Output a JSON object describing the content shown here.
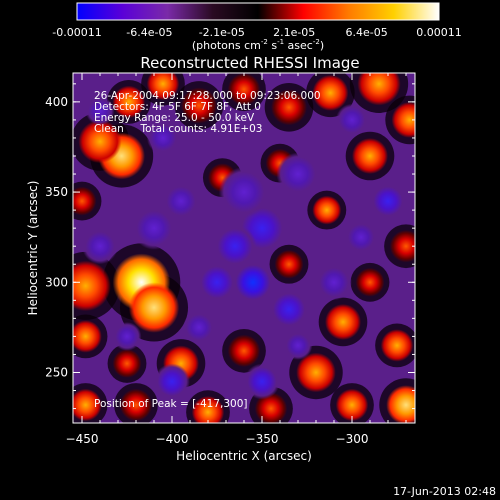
{
  "colorbar": {
    "tick_labels": [
      "-0.00011",
      "-6.4e-05",
      "-2.1e-05",
      "2.1e-05",
      "6.4e-05",
      "0.00011"
    ],
    "unit_prefix": "(photons cm",
    "unit_exp1": "-2",
    "unit_mid": " s",
    "unit_exp2": "-1",
    "unit_mid2": " asec",
    "unit_exp3": "-2",
    "unit_suffix": ")",
    "colors": [
      "#0000ff",
      "#5a00d8",
      "#7a2aa8",
      "#2a0a22",
      "#000000",
      "#ff0000",
      "#ff7a00",
      "#ffd000",
      "#ffffff"
    ]
  },
  "chart_data": {
    "type": "heatmap",
    "title": "Reconstructed RHESSI Image",
    "xlabel": "Heliocentric X (arcsec)",
    "ylabel": "Heliocentric Y (arcsec)",
    "xlim": [
      -455,
      -265
    ],
    "ylim": [
      222,
      416
    ],
    "x_ticks": [
      -450,
      -400,
      -350,
      -300
    ],
    "y_ticks": [
      250,
      300,
      350,
      400
    ],
    "x_tick_labels": [
      "−450",
      "−400",
      "−350",
      "−300"
    ],
    "y_tick_labels": [
      "250",
      "300",
      "350",
      "400"
    ],
    "annotations": [
      "26-Apr-2004 09:17:28.000 to 09:23:06.000",
      "Detectors: 4F 5F 6F 7F 8F, Att 0",
      "Energy Range: 25.0 - 50.0 keV",
      "Clean     Total counts: 4.91E+03"
    ],
    "peak_label": "Position of Peak = [-417,300]",
    "peak": [
      -417,
      300
    ],
    "blobs": [
      {
        "x": -417,
        "y": 300,
        "v": 1.0,
        "r": 16
      },
      {
        "x": -410,
        "y": 286,
        "v": 0.85,
        "r": 14
      },
      {
        "x": -448,
        "y": 298,
        "v": 0.55,
        "r": 14
      },
      {
        "x": -428,
        "y": 370,
        "v": 0.75,
        "r": 13
      },
      {
        "x": -440,
        "y": 378,
        "v": 0.6,
        "r": 12
      },
      {
        "x": -424,
        "y": 400,
        "v": 0.55,
        "r": 9
      },
      {
        "x": -405,
        "y": 410,
        "v": 0.5,
        "r": 9
      },
      {
        "x": -385,
        "y": 398,
        "v": 0.45,
        "r": 10
      },
      {
        "x": -360,
        "y": 407,
        "v": 0.4,
        "r": 9
      },
      {
        "x": -335,
        "y": 397,
        "v": 0.45,
        "r": 10
      },
      {
        "x": -312,
        "y": 405,
        "v": 0.55,
        "r": 10
      },
      {
        "x": -285,
        "y": 410,
        "v": 0.6,
        "r": 12
      },
      {
        "x": -268,
        "y": 390,
        "v": 0.5,
        "r": 10
      },
      {
        "x": -290,
        "y": 370,
        "v": 0.55,
        "r": 10
      },
      {
        "x": -340,
        "y": 366,
        "v": 0.4,
        "r": 8
      },
      {
        "x": -372,
        "y": 358,
        "v": 0.35,
        "r": 8
      },
      {
        "x": -314,
        "y": 340,
        "v": 0.5,
        "r": 8
      },
      {
        "x": -270,
        "y": 320,
        "v": 0.45,
        "r": 9
      },
      {
        "x": -290,
        "y": 300,
        "v": 0.4,
        "r": 8
      },
      {
        "x": -335,
        "y": 310,
        "v": 0.35,
        "r": 8
      },
      {
        "x": -395,
        "y": 255,
        "v": 0.55,
        "r": 10
      },
      {
        "x": -425,
        "y": 255,
        "v": 0.4,
        "r": 8
      },
      {
        "x": -360,
        "y": 262,
        "v": 0.45,
        "r": 9
      },
      {
        "x": -320,
        "y": 250,
        "v": 0.7,
        "r": 11
      },
      {
        "x": -305,
        "y": 278,
        "v": 0.6,
        "r": 10
      },
      {
        "x": -275,
        "y": 265,
        "v": 0.55,
        "r": 9
      },
      {
        "x": -270,
        "y": 232,
        "v": 0.9,
        "r": 11
      },
      {
        "x": -300,
        "y": 232,
        "v": 0.5,
        "r": 9
      },
      {
        "x": -345,
        "y": 230,
        "v": 0.45,
        "r": 9
      },
      {
        "x": -380,
        "y": 228,
        "v": 0.55,
        "r": 9
      },
      {
        "x": -420,
        "y": 232,
        "v": 0.45,
        "r": 9
      },
      {
        "x": -448,
        "y": 232,
        "v": 0.5,
        "r": 9
      },
      {
        "x": -448,
        "y": 270,
        "v": 0.5,
        "r": 9
      },
      {
        "x": -450,
        "y": 345,
        "v": 0.45,
        "r": 8
      },
      {
        "x": -350,
        "y": 330,
        "v": -0.5,
        "r": 14
      },
      {
        "x": -360,
        "y": 350,
        "v": -0.45,
        "r": 14
      },
      {
        "x": -330,
        "y": 360,
        "v": -0.45,
        "r": 12
      },
      {
        "x": -355,
        "y": 300,
        "v": -0.9,
        "r": 12
      },
      {
        "x": -375,
        "y": 300,
        "v": -0.55,
        "r": 11
      },
      {
        "x": -365,
        "y": 320,
        "v": -0.5,
        "r": 12
      },
      {
        "x": -335,
        "y": 285,
        "v": -0.5,
        "r": 11
      },
      {
        "x": -410,
        "y": 330,
        "v": -0.45,
        "r": 12
      },
      {
        "x": -440,
        "y": 320,
        "v": -0.4,
        "r": 10
      },
      {
        "x": -395,
        "y": 345,
        "v": -0.4,
        "r": 10
      },
      {
        "x": -400,
        "y": 245,
        "v": -0.6,
        "r": 10
      },
      {
        "x": -350,
        "y": 245,
        "v": -0.55,
        "r": 10
      },
      {
        "x": -310,
        "y": 300,
        "v": -0.45,
        "r": 10
      },
      {
        "x": -295,
        "y": 325,
        "v": -0.45,
        "r": 9
      },
      {
        "x": -280,
        "y": 345,
        "v": -0.5,
        "r": 10
      },
      {
        "x": -300,
        "y": 390,
        "v": -0.4,
        "r": 9
      },
      {
        "x": -405,
        "y": 380,
        "v": -0.35,
        "r": 9
      },
      {
        "x": -440,
        "y": 395,
        "v": -0.3,
        "r": 8
      },
      {
        "x": -385,
        "y": 275,
        "v": -0.4,
        "r": 9
      },
      {
        "x": -425,
        "y": 270,
        "v": -0.35,
        "r": 8
      },
      {
        "x": -330,
        "y": 265,
        "v": -0.35,
        "r": 8
      }
    ]
  },
  "footer": {
    "timestamp": "17-Jun-2013 02:48"
  }
}
